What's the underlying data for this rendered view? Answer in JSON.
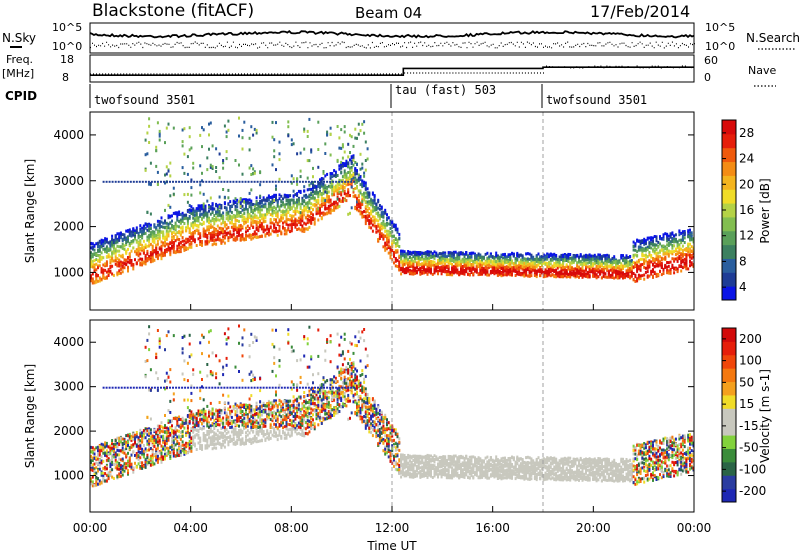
{
  "header": {
    "title": "Blackstone (fitACF)",
    "beam": "Beam 04",
    "date": "17/Feb/2014"
  },
  "top_panels": {
    "nsky_label": "N.Sky",
    "nsearch_label": "N.Search",
    "nsky_ticks": [
      "10^5",
      "10^0"
    ],
    "nsearch_ticks": [
      "10^5",
      "10^0"
    ],
    "freq_label": "Freq.",
    "freq_unit": "[MHz]",
    "freq_ticks": [
      "18",
      "8"
    ],
    "nave_label": "Nave",
    "nave_ticks": [
      "60",
      "0"
    ],
    "freq_steps": [
      {
        "time_h": 0,
        "mhz": 9.9
      },
      {
        "time_h": 12.45,
        "mhz": 12.8
      },
      {
        "time_h": 18.0,
        "mhz": 13.3
      }
    ],
    "cpid_label": "CPID",
    "cpid_segments": [
      {
        "label": "twofsound 3501",
        "start_h": 0,
        "end_h": 12
      },
      {
        "label": "tau (fast) 503",
        "start_h": 12,
        "end_h": 18
      },
      {
        "label": "twofsound 3501",
        "start_h": 18,
        "end_h": 24
      }
    ]
  },
  "chart_data": [
    {
      "type": "heatmap",
      "parameter": "Power",
      "ylabel": "Slant Range [km]",
      "ylim": [
        180,
        4500
      ],
      "yticks": [
        1000,
        2000,
        3000,
        4000
      ],
      "colorbar_label": "Power [dB]",
      "colorbar_ticks": [
        "28",
        "24",
        "20",
        "16",
        "12",
        "8",
        "4"
      ],
      "colorbar_range": [
        0,
        30
      ],
      "colorbar_colors": [
        "#0a14e6",
        "#1e3c96",
        "#2a5e9e",
        "#3c8060",
        "#5aa05a",
        "#82be50",
        "#b4d246",
        "#f0dc28",
        "#f4b41e",
        "#f48c14",
        "#f05a0c",
        "#e61e0a",
        "#d80a0a"
      ],
      "echo_bands": [
        {
          "start_h": 0.0,
          "end_h": 4.0,
          "range_start_km": 950,
          "range_end_km": 1750,
          "peak_db": 30
        },
        {
          "start_h": 4.0,
          "end_h": 8.5,
          "range_start_km": 1750,
          "range_end_km": 2100,
          "peak_db": 20
        },
        {
          "start_h": 8.5,
          "end_h": 10.5,
          "range_start_km": 2100,
          "range_end_km": 2900,
          "peak_db": 18
        },
        {
          "start_h": 12.3,
          "end_h": 24.0,
          "range_start_km": 1100,
          "range_end_km": 1000,
          "peak_db": 28
        },
        {
          "start_h": 21.5,
          "end_h": 24.0,
          "range_start_km": 1000,
          "range_end_km": 1300,
          "peak_db": 28
        }
      ],
      "note_lines": [
        3000
      ]
    },
    {
      "type": "heatmap",
      "parameter": "Velocity",
      "ylabel": "Slant Range [km]",
      "ylim": [
        180,
        4500
      ],
      "yticks": [
        1000,
        2000,
        3000,
        4000
      ],
      "xlabel": "Time UT",
      "xlim": [
        0,
        24
      ],
      "xticks": [
        "00:00",
        "04:00",
        "08:00",
        "12:00",
        "16:00",
        "20:00",
        "00:00"
      ],
      "colorbar_label": "Velocity [m s-1]",
      "colorbar_ticks": [
        "200",
        "100",
        "50",
        "15",
        "-15",
        "-50",
        "-100",
        "-200"
      ],
      "colorbar_colors": [
        "#1e28b4",
        "#2a3ca0",
        "#2a6446",
        "#3a8c3a",
        "#82d23c",
        "#c8c8be",
        "#c8c8be",
        "#f0dc28",
        "#f4a01e",
        "#f4780f",
        "#f0460a",
        "#e61e0a",
        "#d20a0a"
      ],
      "ground_scatter_color": "#c8c8be"
    }
  ],
  "colors": {
    "frame": "#000000",
    "dash": "#a0a0a0"
  }
}
